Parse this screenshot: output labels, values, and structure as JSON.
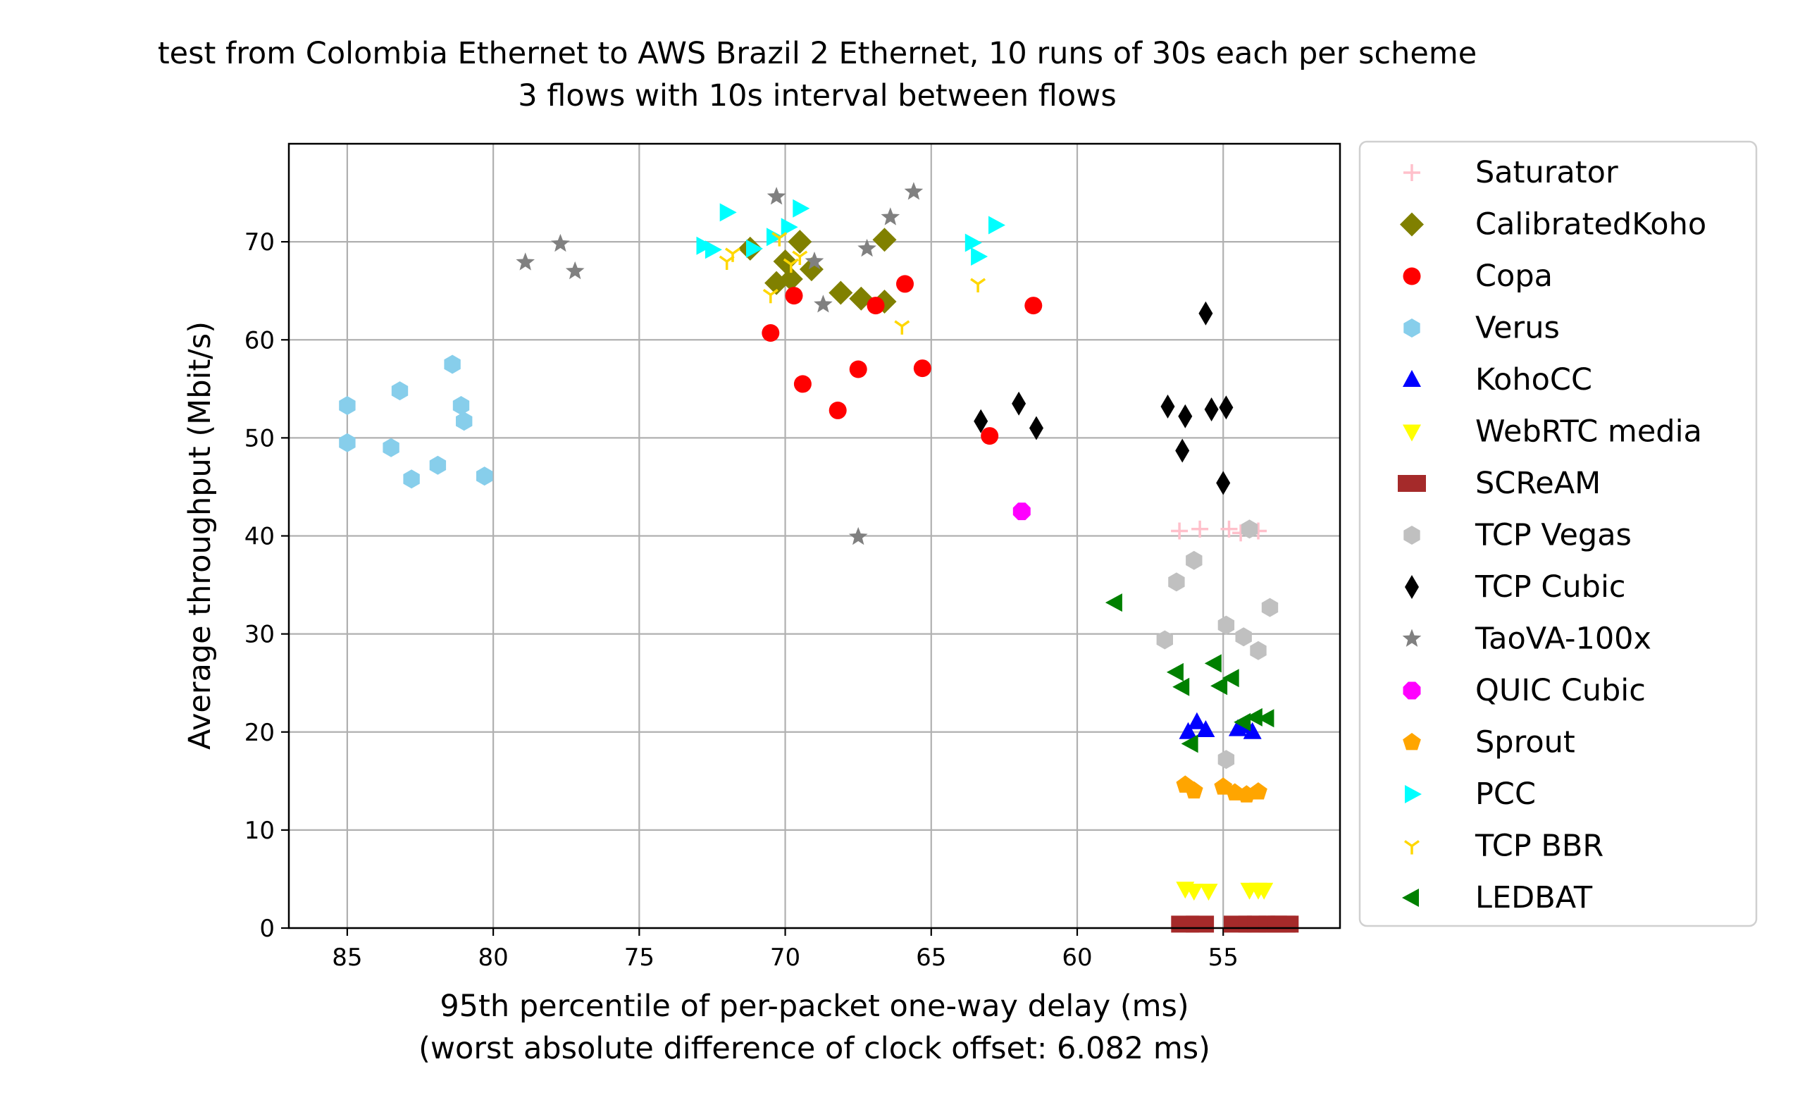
{
  "chart_data": {
    "type": "scatter",
    "title_lines": [
      "test from Colombia Ethernet to AWS Brazil 2 Ethernet, 10 runs of 30s each per scheme",
      "3 flows with 10s interval between flows"
    ],
    "xlabel_lines": [
      "95th percentile of per-packet one-way delay (ms)",
      "(worst absolute difference of clock offset: 6.082 ms)"
    ],
    "ylabel": "Average throughput (Mbit/s)",
    "x_reversed": true,
    "xlim": [
      87,
      51
    ],
    "ylim": [
      0,
      80
    ],
    "xticks": [
      85,
      80,
      75,
      70,
      65,
      60,
      55
    ],
    "yticks": [
      0,
      10,
      20,
      30,
      40,
      50,
      60,
      70
    ],
    "grid": true,
    "legend_position": "outside-right",
    "series": [
      {
        "name": "Saturator",
        "color": "#ffc0cb",
        "marker": "plus",
        "points": [
          [
            56.5,
            40.5
          ],
          [
            55.8,
            40.7
          ],
          [
            54.8,
            40.7
          ],
          [
            54.4,
            40.3
          ],
          [
            53.8,
            40.5
          ]
        ]
      },
      {
        "name": "CalibratedKoho",
        "color": "#808000",
        "marker": "diamond",
        "points": [
          [
            71.2,
            69.3
          ],
          [
            69.5,
            70.0
          ],
          [
            70.0,
            68.0
          ],
          [
            69.1,
            67.2
          ],
          [
            70.3,
            65.8
          ],
          [
            69.8,
            66.2
          ],
          [
            68.1,
            64.8
          ],
          [
            67.4,
            64.2
          ],
          [
            66.6,
            63.9
          ],
          [
            66.6,
            70.2
          ]
        ]
      },
      {
        "name": "Copa",
        "color": "#ff0000",
        "marker": "circle",
        "points": [
          [
            70.5,
            60.7
          ],
          [
            69.7,
            64.5
          ],
          [
            69.4,
            55.5
          ],
          [
            68.2,
            52.8
          ],
          [
            67.5,
            57.0
          ],
          [
            66.9,
            63.5
          ],
          [
            65.9,
            65.7
          ],
          [
            65.3,
            57.1
          ],
          [
            63.0,
            50.2
          ],
          [
            61.5,
            63.5
          ]
        ]
      },
      {
        "name": "Verus",
        "color": "#87ceeb",
        "marker": "hexagon",
        "points": [
          [
            85.0,
            53.3
          ],
          [
            85.0,
            49.5
          ],
          [
            83.5,
            49.0
          ],
          [
            83.2,
            54.8
          ],
          [
            82.8,
            45.8
          ],
          [
            81.9,
            47.2
          ],
          [
            81.4,
            57.5
          ],
          [
            81.1,
            53.3
          ],
          [
            81.0,
            51.7
          ],
          [
            80.3,
            46.1
          ]
        ]
      },
      {
        "name": "KohoCC",
        "color": "#0000ff",
        "marker": "triangle-up",
        "points": [
          [
            56.2,
            20.0
          ],
          [
            55.9,
            21.0
          ],
          [
            55.6,
            20.2
          ],
          [
            54.5,
            20.3
          ],
          [
            54.0,
            20.0
          ],
          [
            54.2,
            20.6
          ]
        ]
      },
      {
        "name": "WebRTC media",
        "color": "#ffff00",
        "marker": "triangle-down",
        "points": [
          [
            56.3,
            4.0
          ],
          [
            56.0,
            3.8
          ],
          [
            55.5,
            3.8
          ],
          [
            54.1,
            3.9
          ],
          [
            53.8,
            3.9
          ],
          [
            53.6,
            3.9
          ]
        ]
      },
      {
        "name": "SCReAM",
        "color": "#a52a2a",
        "marker": "square",
        "points": [
          [
            56.3,
            0.4
          ],
          [
            55.8,
            0.4
          ],
          [
            54.5,
            0.4
          ],
          [
            54.0,
            0.4
          ],
          [
            53.7,
            0.4
          ],
          [
            53.3,
            0.4
          ],
          [
            53.0,
            0.4
          ],
          [
            52.9,
            0.4
          ]
        ]
      },
      {
        "name": "TCP Vegas",
        "color": "#c0c0c0",
        "marker": "hexagon",
        "points": [
          [
            57.0,
            29.4
          ],
          [
            56.6,
            35.3
          ],
          [
            56.0,
            37.5
          ],
          [
            54.9,
            30.9
          ],
          [
            54.3,
            29.7
          ],
          [
            53.8,
            28.3
          ],
          [
            53.4,
            32.7
          ],
          [
            54.1,
            40.7
          ],
          [
            54.9,
            17.2
          ]
        ]
      },
      {
        "name": "TCP Cubic",
        "color": "#000000",
        "marker": "thin-diamond",
        "points": [
          [
            63.3,
            51.7
          ],
          [
            62.0,
            53.5
          ],
          [
            61.4,
            51.0
          ],
          [
            56.9,
            53.2
          ],
          [
            56.3,
            52.2
          ],
          [
            56.4,
            48.7
          ],
          [
            55.6,
            62.7
          ],
          [
            55.4,
            52.9
          ],
          [
            54.9,
            53.1
          ],
          [
            55.0,
            45.4
          ]
        ]
      },
      {
        "name": "TaoVA-100x",
        "color": "#808080",
        "marker": "star",
        "points": [
          [
            78.9,
            67.9
          ],
          [
            77.7,
            69.8
          ],
          [
            77.2,
            67.0
          ],
          [
            70.3,
            74.6
          ],
          [
            69.0,
            68.0
          ],
          [
            68.7,
            63.6
          ],
          [
            67.5,
            39.9
          ],
          [
            67.2,
            69.3
          ],
          [
            66.4,
            72.5
          ],
          [
            65.6,
            75.1
          ]
        ]
      },
      {
        "name": "QUIC Cubic",
        "color": "#ff00ff",
        "marker": "octagon",
        "points": [
          [
            61.9,
            42.5
          ]
        ]
      },
      {
        "name": "Sprout",
        "color": "#ffa500",
        "marker": "pentagon",
        "points": [
          [
            56.3,
            14.6
          ],
          [
            56.0,
            14.0
          ],
          [
            55.0,
            14.4
          ],
          [
            54.6,
            13.8
          ],
          [
            54.2,
            13.6
          ],
          [
            53.8,
            13.9
          ]
        ]
      },
      {
        "name": "PCC",
        "color": "#00ffff",
        "marker": "triangle-right",
        "points": [
          [
            72.8,
            69.6
          ],
          [
            72.5,
            69.2
          ],
          [
            72.0,
            73.0
          ],
          [
            71.1,
            69.3
          ],
          [
            70.4,
            70.5
          ],
          [
            69.9,
            71.5
          ],
          [
            69.5,
            73.4
          ],
          [
            63.6,
            69.9
          ],
          [
            63.4,
            68.5
          ],
          [
            62.8,
            71.7
          ]
        ]
      },
      {
        "name": "TCP BBR",
        "color": "#ffd700",
        "marker": "tri-down",
        "points": [
          [
            72.0,
            68.0
          ],
          [
            71.8,
            68.8
          ],
          [
            70.5,
            64.6
          ],
          [
            70.2,
            70.4
          ],
          [
            69.8,
            67.7
          ],
          [
            69.5,
            68.5
          ],
          [
            66.0,
            61.4
          ],
          [
            63.4,
            65.7
          ]
        ]
      },
      {
        "name": "LEDBAT",
        "color": "#008000",
        "marker": "triangle-left",
        "points": [
          [
            58.7,
            33.2
          ],
          [
            56.6,
            26.1
          ],
          [
            56.4,
            24.6
          ],
          [
            56.1,
            18.8
          ],
          [
            55.1,
            24.7
          ],
          [
            54.7,
            25.5
          ],
          [
            54.3,
            21.0
          ],
          [
            53.9,
            21.5
          ],
          [
            53.5,
            21.4
          ],
          [
            55.3,
            27.0
          ]
        ]
      }
    ]
  }
}
